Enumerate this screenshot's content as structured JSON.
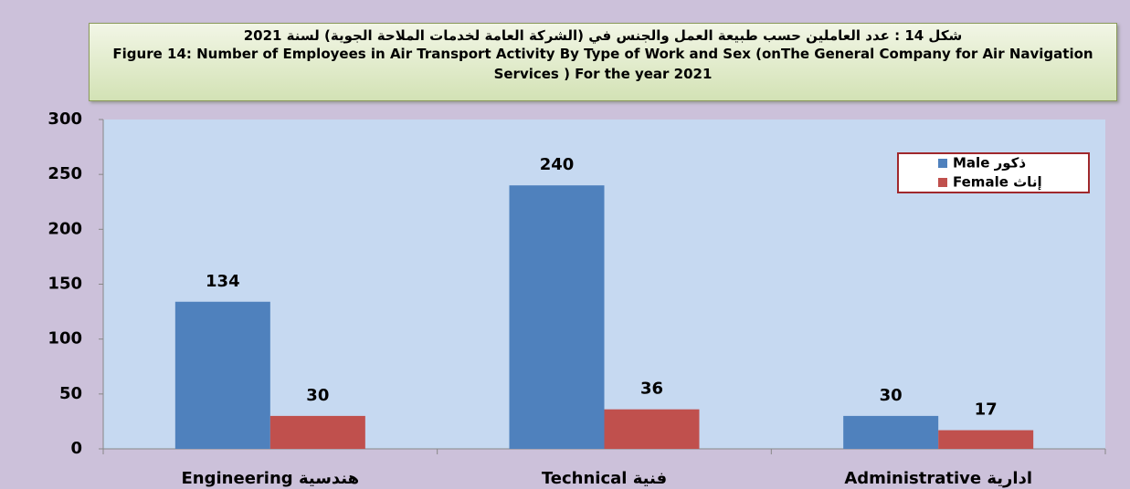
{
  "chart_data": {
    "type": "bar",
    "title": "شكل 14 : عدد العاملين حسب طبيعة العمل والجنس في (الشركة العامة لخدمات الملاحة الجوية) لسنة 2021",
    "subtitle": "Figure   14: Number of Employees in Air Transport Activity By Type of Work and Sex (onThe General Company for Air Navigation Services ) For the year 2021",
    "categories": [
      "Engineering هندسية",
      "Technical فنية",
      "Administrative ادارية"
    ],
    "series": [
      {
        "name": "Male ذكور",
        "color": "#4f81bd",
        "values": [
          134,
          240,
          30
        ]
      },
      {
        "name": "Female إناث",
        "color": "#c0504d",
        "values": [
          30,
          36,
          17
        ]
      }
    ],
    "ylim": [
      0,
      300
    ],
    "yticks": [
      0,
      50,
      100,
      150,
      200,
      250,
      300
    ],
    "grid": false,
    "legend": "upper right"
  }
}
